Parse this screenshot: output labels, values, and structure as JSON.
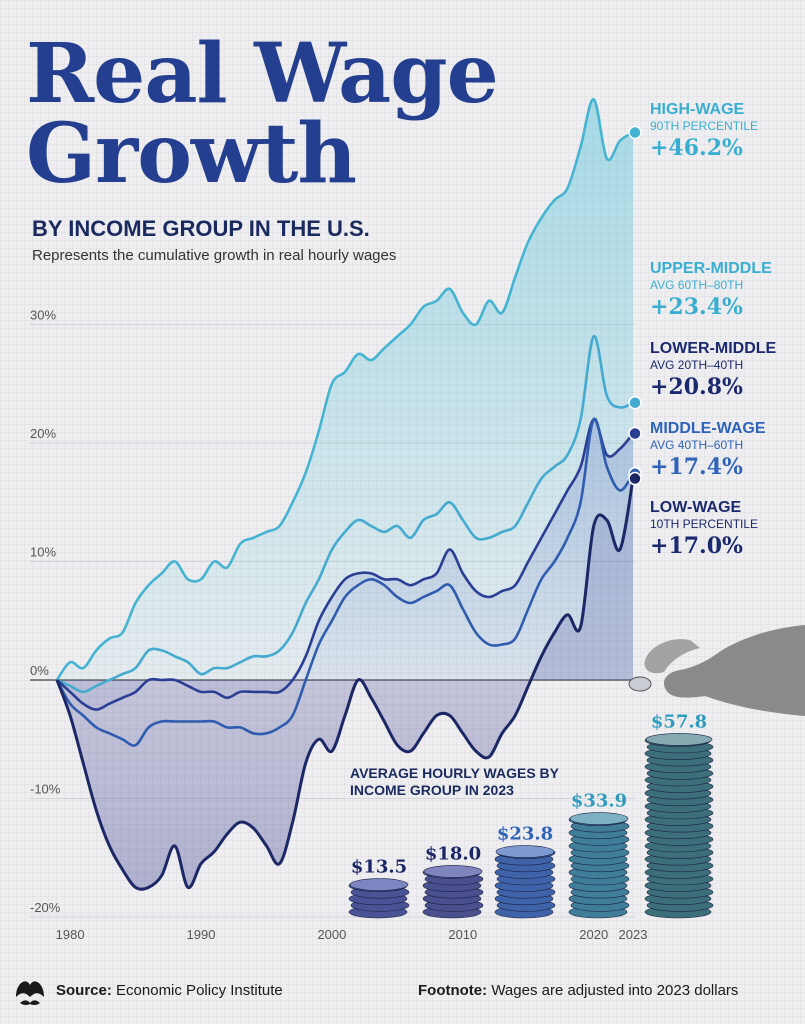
{
  "header": {
    "title_line1": "Real Wage",
    "title_line2": "Growth",
    "subtitle": "BY INCOME GROUP IN THE U.S.",
    "description": "Represents the cumulative growth in real hourly wages"
  },
  "series_labels": [
    {
      "name": "HIGH-WAGE",
      "sub": "90TH PERCENTILE",
      "pct": "+46.2%"
    },
    {
      "name": "UPPER-MIDDLE",
      "sub": "AVG 60TH–80TH",
      "pct": "+23.4%"
    },
    {
      "name": "LOWER-MIDDLE",
      "sub": "AVG 20TH–40TH",
      "pct": "+20.8%"
    },
    {
      "name": "MIDDLE-WAGE",
      "sub": "AVG 40TH–60TH",
      "pct": "+17.4%"
    },
    {
      "name": "LOW-WAGE",
      "sub": "10TH PERCENTILE",
      "pct": "+17.0%"
    }
  ],
  "stacks": {
    "title": "AVERAGE HOURLY WAGES BY INCOME GROUP IN 2023",
    "values": [
      "$13.5",
      "$18.0",
      "$23.8",
      "$33.9",
      "$57.8"
    ]
  },
  "footer": {
    "source_label": "Source:",
    "source": "Economic Policy Institute",
    "footnote_label": "Footnote:",
    "footnote": "Wages are adjusted into 2023 dollars"
  },
  "colors": {
    "cyan": "#3aaed0",
    "blue": "#2f63b8",
    "navy": "#1b2a6e",
    "title": "#243f8f"
  },
  "chart_data": {
    "type": "line",
    "xlim": [
      1979,
      2023
    ],
    "ylim": [
      -20,
      47
    ],
    "yticks": [
      30,
      20,
      10,
      0,
      -10,
      -20
    ],
    "ytick_labels": [
      "30%",
      "20%",
      "10%",
      "0%",
      "-10%",
      "-20%"
    ],
    "xticks": [
      1980,
      1990,
      2000,
      2010,
      2020,
      2023
    ],
    "xtick_labels": [
      "1980",
      "1990",
      "2000",
      "2010",
      "2020",
      "2023"
    ],
    "grid": true,
    "x": [
      1979,
      1980,
      1981,
      1982,
      1983,
      1984,
      1985,
      1986,
      1987,
      1988,
      1989,
      1990,
      1991,
      1992,
      1993,
      1994,
      1995,
      1996,
      1997,
      1998,
      1999,
      2000,
      2001,
      2002,
      2003,
      2004,
      2005,
      2006,
      2007,
      2008,
      2009,
      2010,
      2011,
      2012,
      2013,
      2014,
      2015,
      2016,
      2017,
      2018,
      2019,
      2020,
      2021,
      2022,
      2023
    ],
    "series": [
      {
        "name": "HIGH-WAGE",
        "values": [
          0,
          1.5,
          1.0,
          2.5,
          3.5,
          4.0,
          6.5,
          8.0,
          9.0,
          10.0,
          8.5,
          8.5,
          10.0,
          9.5,
          11.5,
          12.0,
          12.5,
          13.0,
          15.0,
          17.5,
          21.0,
          25.0,
          26.0,
          27.5,
          27.0,
          28.0,
          29.0,
          30.0,
          31.5,
          32.0,
          33.0,
          31.0,
          30.0,
          32.0,
          31.0,
          34.0,
          37.0,
          39.0,
          40.5,
          41.5,
          45.0,
          49.0,
          44.0,
          45.5,
          46.2
        ]
      },
      {
        "name": "UPPER-MIDDLE",
        "values": [
          0,
          -0.5,
          -1.0,
          -0.5,
          0,
          0.5,
          1.0,
          2.5,
          2.5,
          2.0,
          1.5,
          0.5,
          1.0,
          1.0,
          1.5,
          2.0,
          2.0,
          2.5,
          4.0,
          6.5,
          8.5,
          11.0,
          12.5,
          13.5,
          13.0,
          12.5,
          13.0,
          12.0,
          13.5,
          14.0,
          15.0,
          13.5,
          12.0,
          12.0,
          12.5,
          13.0,
          15.0,
          17.0,
          18.0,
          19.0,
          22.0,
          29.0,
          24.0,
          23.0,
          23.4
        ]
      },
      {
        "name": "LOWER-MIDDLE",
        "values": [
          0,
          -1.0,
          -2.0,
          -2.5,
          -2.0,
          -1.5,
          -1.0,
          0,
          0,
          0,
          -0.5,
          -1.0,
          -1.0,
          -1.5,
          -1.0,
          -1.0,
          -1.0,
          -1.0,
          0,
          2.0,
          5.0,
          7.0,
          8.5,
          9.0,
          9.0,
          8.5,
          8.5,
          8.0,
          8.5,
          9.0,
          11.0,
          9.0,
          7.5,
          7.0,
          7.5,
          8.0,
          10.0,
          12.0,
          14.0,
          16.0,
          18.0,
          22.0,
          19.0,
          19.5,
          20.8
        ]
      },
      {
        "name": "MIDDLE-WAGE",
        "values": [
          0,
          -2.0,
          -3.0,
          -4.0,
          -4.5,
          -5.0,
          -5.5,
          -4.0,
          -3.5,
          -3.5,
          -3.5,
          -3.5,
          -3.5,
          -4.0,
          -4.0,
          -4.5,
          -4.5,
          -4.0,
          -3.0,
          0,
          3.0,
          5.0,
          7.0,
          8.0,
          8.5,
          8.0,
          7.0,
          6.5,
          7.0,
          7.5,
          8.0,
          6.0,
          4.0,
          3.0,
          3.0,
          3.5,
          6.0,
          8.5,
          10.0,
          12.0,
          15.0,
          22.0,
          18.0,
          16.0,
          17.4
        ]
      },
      {
        "name": "LOW-WAGE",
        "values": [
          0,
          -3.0,
          -7.0,
          -11.0,
          -14.0,
          -16.0,
          -17.5,
          -17.5,
          -16.5,
          -14.0,
          -17.5,
          -15.5,
          -14.5,
          -13.0,
          -12.0,
          -12.5,
          -14.0,
          -15.5,
          -12.0,
          -7.0,
          -5.0,
          -6.0,
          -3.0,
          0,
          -1.5,
          -3.5,
          -5.5,
          -6.0,
          -4.5,
          -3.0,
          -3.0,
          -4.5,
          -6.0,
          -6.5,
          -4.5,
          -3.0,
          -0.5,
          2.0,
          4.0,
          5.5,
          4.5,
          13.0,
          13.5,
          11.0,
          17.0
        ]
      }
    ]
  }
}
